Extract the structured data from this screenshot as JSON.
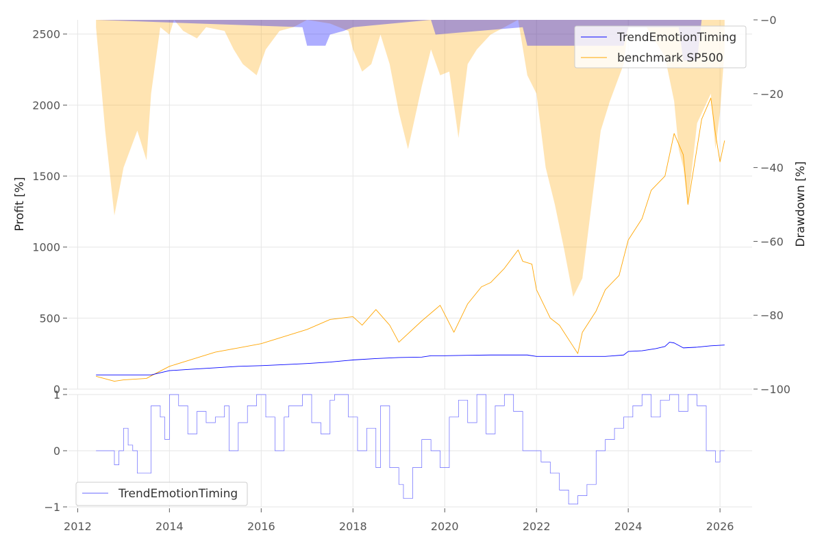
{
  "chart_data": [
    {
      "type": "line",
      "ylabel": "Profit [%]",
      "y2label": "Drawdown [%]",
      "ylim": [
        0,
        2600
      ],
      "y2lim": [
        -100,
        0
      ],
      "xlim": [
        2011.8,
        2026.7
      ],
      "yticks": [
        "0",
        "500",
        "1000",
        "1500",
        "2000",
        "2500"
      ],
      "ytick_values": [
        0,
        500,
        1000,
        1500,
        2000,
        2500
      ],
      "y2ticks": [
        "−0",
        "−20",
        "−40",
        "−60",
        "−80",
        "−100"
      ],
      "y2tick_values": [
        0,
        -20,
        -40,
        -60,
        -80,
        -100
      ],
      "grid": true,
      "legend": "top-right",
      "series": [
        {
          "name": "TrendEmotionTiming",
          "color": "#0000ff",
          "x": [
            2012.4,
            2013.6,
            2014.0,
            2014.5,
            2015.0,
            2015.5,
            2016.0,
            2016.5,
            2017.0,
            2017.5,
            2018.0,
            2018.5,
            2019.0,
            2019.5,
            2019.7,
            2020.0,
            2020.5,
            2021.0,
            2021.5,
            2021.8,
            2022.0,
            2022.5,
            2023.0,
            2023.5,
            2023.9,
            2024.0,
            2024.3,
            2024.6,
            2024.8,
            2024.9,
            2025.0,
            2025.2,
            2025.5,
            2025.8,
            2026.1
          ],
          "values": [
            100,
            100,
            130,
            140,
            150,
            160,
            165,
            172,
            180,
            190,
            205,
            215,
            222,
            225,
            235,
            235,
            238,
            240,
            240,
            240,
            230,
            230,
            230,
            230,
            240,
            265,
            270,
            285,
            300,
            330,
            325,
            290,
            295,
            305,
            310
          ]
        },
        {
          "name": "benchmark SP500",
          "color": "#ffa500",
          "x": [
            2012.4,
            2012.8,
            2013.0,
            2013.5,
            2013.7,
            2014.0,
            2014.5,
            2015.0,
            2015.5,
            2016.0,
            2016.5,
            2017.0,
            2017.5,
            2018.0,
            2018.2,
            2018.5,
            2018.8,
            2019.0,
            2019.5,
            2019.9,
            2020.2,
            2020.5,
            2020.8,
            2021.0,
            2021.3,
            2021.6,
            2021.7,
            2021.9,
            2022.0,
            2022.3,
            2022.5,
            2022.8,
            2022.9,
            2023.0,
            2023.3,
            2023.5,
            2023.8,
            2024.0,
            2024.3,
            2024.5,
            2024.8,
            2025.0,
            2025.2,
            2025.3,
            2025.5,
            2025.6,
            2025.8,
            2025.9,
            2026.0,
            2026.1
          ],
          "values": [
            90,
            55,
            65,
            75,
            110,
            160,
            210,
            260,
            290,
            320,
            370,
            420,
            490,
            510,
            450,
            560,
            450,
            330,
            480,
            590,
            400,
            600,
            720,
            750,
            850,
            980,
            900,
            880,
            700,
            500,
            450,
            300,
            250,
            400,
            550,
            700,
            800,
            1050,
            1200,
            1400,
            1500,
            1800,
            1650,
            1300,
            1700,
            1900,
            2050,
            1800,
            1600,
            1750
          ]
        }
      ],
      "drawdown": [
        {
          "name": "TrendEmotionTiming",
          "color": "#0000ff",
          "x": [
            2012.4,
            2016.9,
            2017.0,
            2017.4,
            2017.5,
            2017.8,
            2018.0,
            2019.7,
            2019.8,
            2021.7,
            2021.8,
            2022.5,
            2023.0,
            2023.9,
            2024.0,
            2025.1,
            2025.2,
            2025.5,
            2025.6
          ],
          "values": [
            0,
            -2,
            -7,
            -7,
            -4,
            -3,
            -2,
            0,
            -4,
            -2,
            -7,
            -7,
            -7,
            -7,
            -2,
            -2,
            -11,
            -11,
            0
          ]
        },
        {
          "name": "benchmark SP500",
          "color": "#ffa500",
          "x": [
            2012.4,
            2012.6,
            2012.8,
            2013.0,
            2013.3,
            2013.5,
            2013.6,
            2013.8,
            2014.0,
            2014.1,
            2014.3,
            2014.6,
            2014.8,
            2015.2,
            2015.4,
            2015.6,
            2015.9,
            2016.1,
            2016.4,
            2016.7,
            2017.0,
            2017.5,
            2017.9,
            2018.0,
            2018.2,
            2018.4,
            2018.6,
            2018.8,
            2019.0,
            2019.2,
            2019.5,
            2019.7,
            2019.9,
            2020.1,
            2020.3,
            2020.5,
            2020.7,
            2021.0,
            2021.3,
            2021.6,
            2021.8,
            2022.0,
            2022.2,
            2022.4,
            2022.6,
            2022.8,
            2023.0,
            2023.2,
            2023.4,
            2023.6,
            2023.9,
            2024.0,
            2024.4,
            2024.8,
            2025.0,
            2025.1,
            2025.2,
            2025.3,
            2025.5,
            2025.8,
            2025.9,
            2026.0,
            2026.1
          ],
          "values": [
            -2,
            -30,
            -53,
            -40,
            -30,
            -38,
            -20,
            -2,
            -4,
            0,
            -3,
            -5,
            -2,
            -3,
            -8,
            -12,
            -15,
            -8,
            -3,
            -2,
            0,
            -1,
            -3,
            -8,
            -14,
            -12,
            -4,
            -12,
            -25,
            -35,
            -18,
            -8,
            -15,
            -14,
            -32,
            -12,
            -8,
            -4,
            -2,
            0,
            -15,
            -20,
            -40,
            -50,
            -62,
            -75,
            -70,
            -50,
            -30,
            -22,
            -12,
            -2,
            -2,
            -10,
            -22,
            -35,
            -40,
            -50,
            -28,
            -20,
            -35,
            -25,
            -8
          ]
        }
      ]
    },
    {
      "type": "line",
      "ylim": [
        -1,
        1
      ],
      "yticks": [
        "−1",
        "0",
        "1"
      ],
      "ytick_values": [
        -1,
        0,
        1
      ],
      "xticks": [
        "2012",
        "2014",
        "2016",
        "2018",
        "2020",
        "2022",
        "2024",
        "2026"
      ],
      "xtick_values": [
        2012,
        2014,
        2016,
        2018,
        2020,
        2022,
        2024,
        2026
      ],
      "grid": true,
      "legend": "bottom-left",
      "series": [
        {
          "name": "TrendEmotionTiming",
          "color": "#6666ff",
          "x": [
            2012.4,
            2012.7,
            2012.8,
            2012.9,
            2013.0,
            2013.1,
            2013.2,
            2013.3,
            2013.5,
            2013.6,
            2013.8,
            2013.9,
            2014.0,
            2014.2,
            2014.4,
            2014.6,
            2014.8,
            2015.0,
            2015.2,
            2015.3,
            2015.5,
            2015.7,
            2015.9,
            2016.1,
            2016.3,
            2016.5,
            2016.6,
            2016.9,
            2017.1,
            2017.3,
            2017.5,
            2017.6,
            2017.9,
            2018.1,
            2018.3,
            2018.5,
            2018.6,
            2018.8,
            2019.0,
            2019.1,
            2019.3,
            2019.5,
            2019.7,
            2019.9,
            2020.1,
            2020.3,
            2020.5,
            2020.7,
            2020.9,
            2021.1,
            2021.3,
            2021.5,
            2021.7,
            2021.9,
            2022.1,
            2022.3,
            2022.5,
            2022.7,
            2022.9,
            2023.1,
            2023.3,
            2023.5,
            2023.7,
            2023.9,
            2024.1,
            2024.3,
            2024.5,
            2024.7,
            2024.9,
            2025.1,
            2025.3,
            2025.5,
            2025.7,
            2025.9,
            2026.0,
            2026.1
          ],
          "values": [
            0,
            0,
            -0.25,
            0,
            0.4,
            0.1,
            0,
            -0.4,
            -0.4,
            0.8,
            0.6,
            0.2,
            1.0,
            0.8,
            0.3,
            0.7,
            0.5,
            0.6,
            0.8,
            0.0,
            0.5,
            0.8,
            1.0,
            0.6,
            0.0,
            0.6,
            0.8,
            1.0,
            0.5,
            0.3,
            0.9,
            1.0,
            0.6,
            0.0,
            0.4,
            -0.3,
            0.8,
            -0.3,
            -0.6,
            -0.85,
            -0.3,
            0.2,
            0.0,
            -0.3,
            0.6,
            0.9,
            0.5,
            1.0,
            0.3,
            0.8,
            1.0,
            0.7,
            0.0,
            0.0,
            -0.2,
            -0.4,
            -0.7,
            -0.95,
            -0.8,
            -0.6,
            0.0,
            0.2,
            0.4,
            0.6,
            0.8,
            1.0,
            0.6,
            0.9,
            1.0,
            0.7,
            1.0,
            0.8,
            0.0,
            -0.2,
            0.0,
            0.0
          ]
        }
      ]
    }
  ]
}
